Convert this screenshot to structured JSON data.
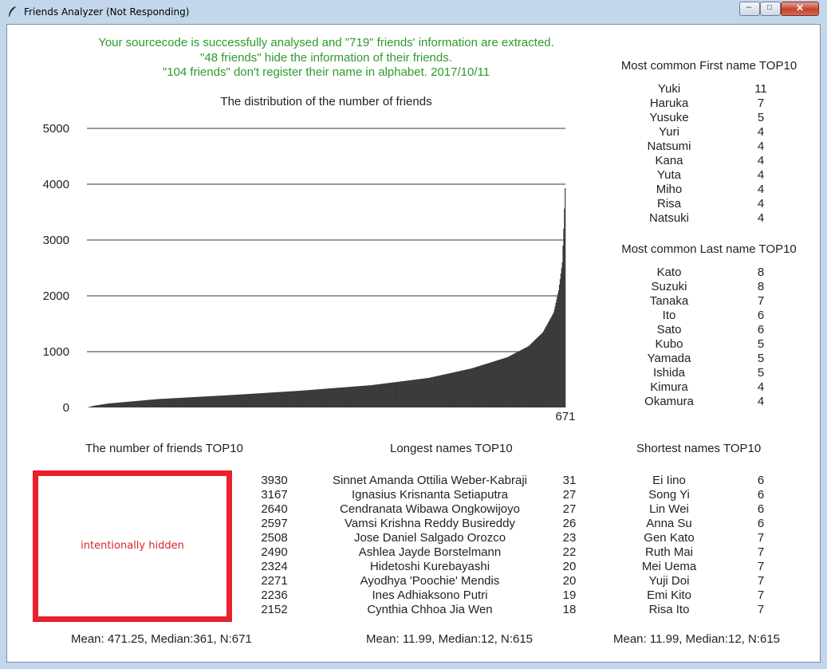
{
  "window": {
    "title": "Friends Analyzer (Not Responding)",
    "minimize_glyph": "–",
    "maximize_glyph": "□",
    "close_glyph": "✕"
  },
  "summary": {
    "line1": "Your sourcecode is successfully analysed and  \"719\"  friends' information are extracted.",
    "line2": "\"48 friends\" hide the information of their friends.",
    "line3": "\"104 friends\" don't register their name in alphabet. 2017/10/11"
  },
  "chart_data": {
    "type": "bar",
    "title": "The distribution of the number of friends",
    "xlabel": "",
    "ylabel": "",
    "ylim": [
      0,
      5000
    ],
    "yticks": [
      0,
      1000,
      2000,
      3000,
      4000,
      5000
    ],
    "grid": true,
    "bar_color": "#3a3a3a",
    "x_end_label": "671",
    "n": 671,
    "sorted_profile": [
      {
        "rank": 1,
        "value": 0
      },
      {
        "rank": 10,
        "value": 30
      },
      {
        "rank": 30,
        "value": 70
      },
      {
        "rank": 100,
        "value": 150
      },
      {
        "rank": 200,
        "value": 220
      },
      {
        "rank": 300,
        "value": 300
      },
      {
        "rank": 400,
        "value": 400
      },
      {
        "rank": 480,
        "value": 530
      },
      {
        "rank": 540,
        "value": 700
      },
      {
        "rank": 590,
        "value": 900
      },
      {
        "rank": 620,
        "value": 1100
      },
      {
        "rank": 640,
        "value": 1350
      },
      {
        "rank": 655,
        "value": 1700
      },
      {
        "rank": 662,
        "value": 2100
      },
      {
        "rank": 667,
        "value": 2600
      },
      {
        "rank": 669,
        "value": 3200
      },
      {
        "rank": 671,
        "value": 3930
      }
    ]
  },
  "first_names": {
    "title": "Most common First name TOP10",
    "rows": [
      {
        "name": "Yuki",
        "count": "11"
      },
      {
        "name": "Haruka",
        "count": "7"
      },
      {
        "name": "Yusuke",
        "count": "5"
      },
      {
        "name": "Yuri",
        "count": "4"
      },
      {
        "name": "Natsumi",
        "count": "4"
      },
      {
        "name": "Kana",
        "count": "4"
      },
      {
        "name": "Yuta",
        "count": "4"
      },
      {
        "name": "Miho",
        "count": "4"
      },
      {
        "name": "Risa",
        "count": "4"
      },
      {
        "name": "Natsuki",
        "count": "4"
      }
    ]
  },
  "last_names": {
    "title": "Most common Last name TOP10",
    "rows": [
      {
        "name": "Kato",
        "count": "8"
      },
      {
        "name": "Suzuki",
        "count": "8"
      },
      {
        "name": "Tanaka",
        "count": "7"
      },
      {
        "name": "Ito",
        "count": "6"
      },
      {
        "name": "Sato",
        "count": "6"
      },
      {
        "name": "Kubo",
        "count": "5"
      },
      {
        "name": "Yamada",
        "count": "5"
      },
      {
        "name": "Ishida",
        "count": "5"
      },
      {
        "name": "Kimura",
        "count": "4"
      },
      {
        "name": "Okamura",
        "count": "4"
      }
    ]
  },
  "friends_top10": {
    "title": "The number of friends TOP10",
    "hidden_text": "intentionally hidden",
    "counts": [
      "3930",
      "3167",
      "2640",
      "2597",
      "2508",
      "2490",
      "2324",
      "2271",
      "2236",
      "2152"
    ],
    "stats": "Mean: 471.25, Median:361, N:671"
  },
  "longest_names": {
    "title": "Longest names TOP10",
    "rows": [
      {
        "name": "Sinnet Amanda Ottilia Weber-Kabraji",
        "len": "31"
      },
      {
        "name": "Ignasius Krisnanta Setiaputra",
        "len": "27"
      },
      {
        "name": "Cendranata Wibawa Ongkowijoyo",
        "len": "27"
      },
      {
        "name": "Vamsi Krishna Reddy Busireddy",
        "len": "26"
      },
      {
        "name": "Jose Daniel Salgado Orozco",
        "len": "23"
      },
      {
        "name": "Ashlea Jayde Borstelmann",
        "len": "22"
      },
      {
        "name": "Hidetoshi  Kurebayashi",
        "len": "20"
      },
      {
        "name": "Ayodhya 'Poochie' Mendis",
        "len": "20"
      },
      {
        "name": "Ines Adhiaksono Putri",
        "len": "19"
      },
      {
        "name": "Cynthia Chhoa Jia Wen",
        "len": "18"
      }
    ],
    "stats": "Mean: 11.99, Median:12, N:615"
  },
  "shortest_names": {
    "title": "Shortest names TOP10",
    "rows": [
      {
        "name": "Ei Iino",
        "len": "6"
      },
      {
        "name": "Song Yi",
        "len": "6"
      },
      {
        "name": "Lin Wei",
        "len": "6"
      },
      {
        "name": "Anna Su",
        "len": "6"
      },
      {
        "name": "Gen Kato",
        "len": "7"
      },
      {
        "name": "Ruth Mai",
        "len": "7"
      },
      {
        "name": "Mei Uema",
        "len": "7"
      },
      {
        "name": "Yuji Doi",
        "len": "7"
      },
      {
        "name": "Emi Kito",
        "len": "7"
      },
      {
        "name": "Risa  Ito",
        "len": "7"
      }
    ],
    "stats": "Mean: 11.99, Median:12, N:615"
  }
}
